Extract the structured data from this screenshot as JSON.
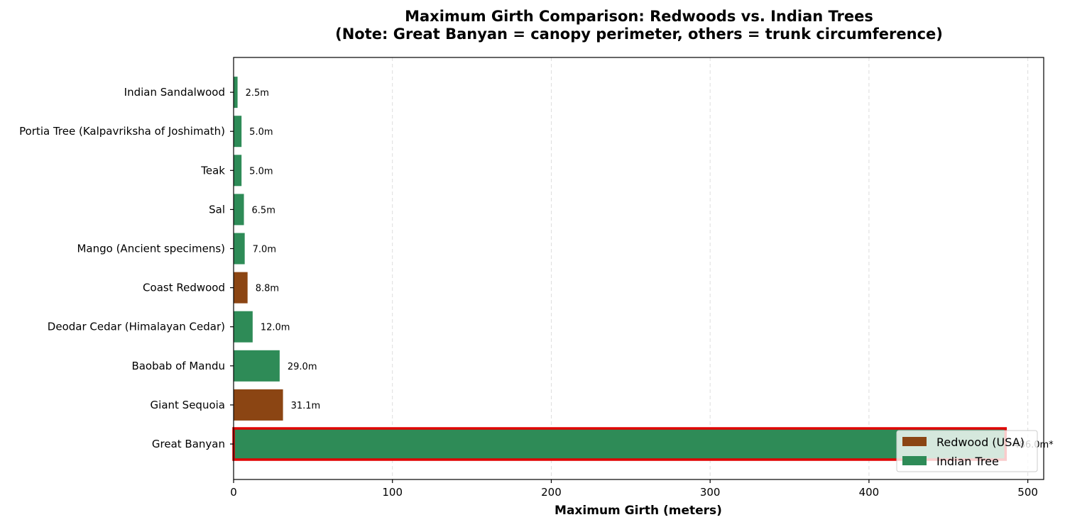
{
  "chart_data": {
    "type": "bar",
    "orientation": "horizontal",
    "title": "Maximum Girth Comparison: Redwoods vs. Indian Trees",
    "subtitle": "(Note: Great Banyan = canopy perimeter, others = trunk circumference)",
    "xlabel": "Maximum Girth (meters)",
    "ylabel": "",
    "xlim": [
      0,
      510
    ],
    "xticks": [
      0,
      100,
      200,
      300,
      400,
      500
    ],
    "xtick_labels": [
      "0",
      "100",
      "200",
      "300",
      "400",
      "500"
    ],
    "grid": "x-dashed",
    "legend_position": "lower-right",
    "categories": [
      "Great Banyan",
      "Giant Sequoia",
      "Baobab of Mandu",
      "Deodar Cedar (Himalayan Cedar)",
      "Coast Redwood",
      "Mango (Ancient specimens)",
      "Sal",
      "Teak",
      "Portia Tree (Kalpavriksha of Joshimath)",
      "Indian Sandalwood"
    ],
    "values": [
      486.0,
      31.1,
      29.0,
      12.0,
      8.8,
      7.0,
      6.5,
      5.0,
      5.0,
      2.5
    ],
    "groups": [
      "Indian Tree",
      "Redwood (USA)",
      "Indian Tree",
      "Indian Tree",
      "Redwood (USA)",
      "Indian Tree",
      "Indian Tree",
      "Indian Tree",
      "Indian Tree",
      "Indian Tree"
    ],
    "value_labels": [
      "486.0m*",
      "31.1m",
      "29.0m",
      "12.0m",
      "8.8m",
      "7.0m",
      "6.5m",
      "5.0m",
      "5.0m",
      "2.5m"
    ],
    "highlighted_category": "Great Banyan",
    "legend": [
      {
        "label": "Redwood (USA)",
        "color": "#8b4513"
      },
      {
        "label": "Indian Tree",
        "color": "#2e8b57"
      }
    ],
    "colors": {
      "Redwood (USA)": "#8b4513",
      "Indian Tree": "#2e8b57",
      "highlight": "#e00000",
      "grid": "#dddddd"
    }
  }
}
